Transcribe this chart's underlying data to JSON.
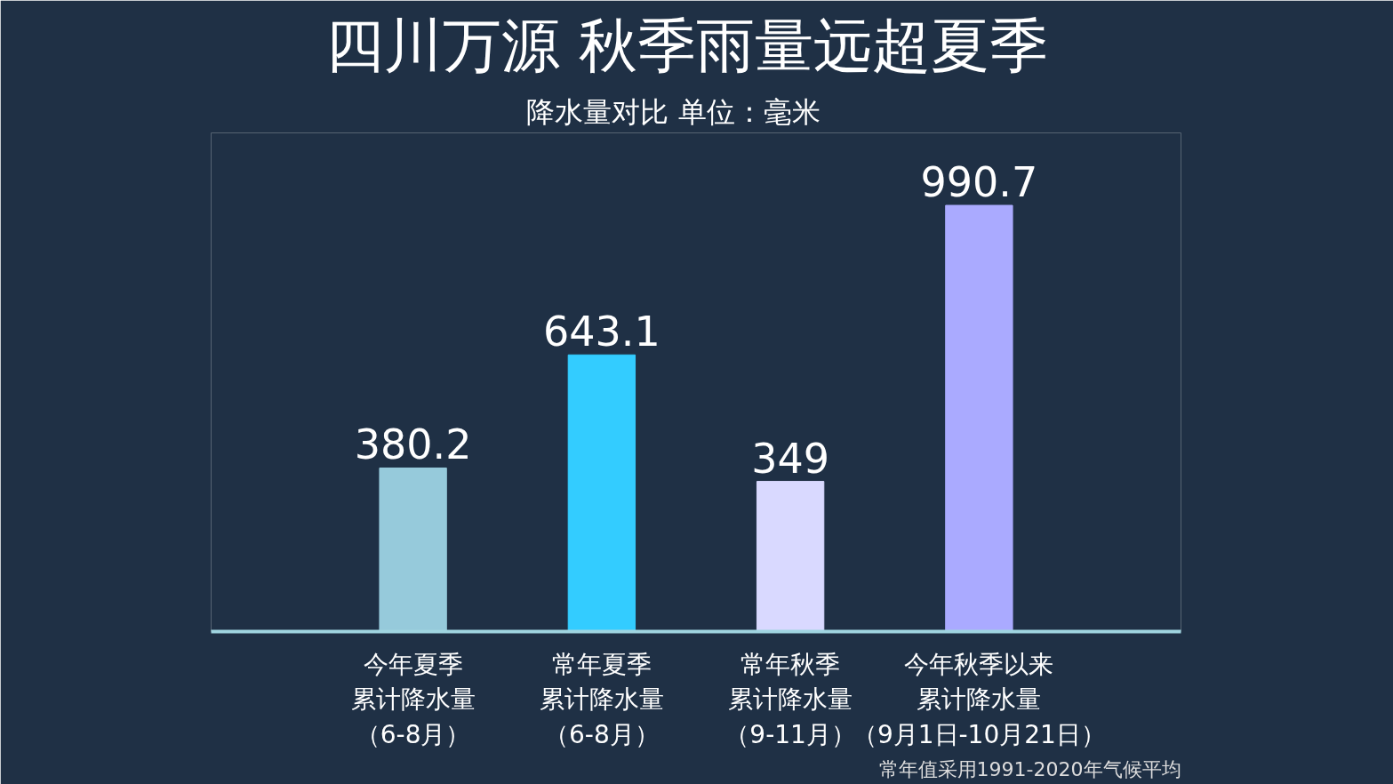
{
  "chart_data": {
    "type": "bar",
    "title": "四川万源  秋季雨量远超夏季",
    "subtitle": "降水量对比      单位：毫米",
    "categories": [
      "今年夏季累计降水量（6-8月）",
      "常年夏季累计降水量（6-8月）",
      "常年秋季累计降水量（9-11月）",
      "今年秋季以来累计降水量（9月1日-10月21日）"
    ],
    "values": [
      380.2,
      643.1,
      349,
      990.7
    ],
    "colors": [
      "#96cadb",
      "#33ccff",
      "#d9d9ff",
      "#aaaaff"
    ],
    "data_labels": true,
    "annotations": [
      "常年值采用1991-2020年气候平均"
    ]
  }
}
